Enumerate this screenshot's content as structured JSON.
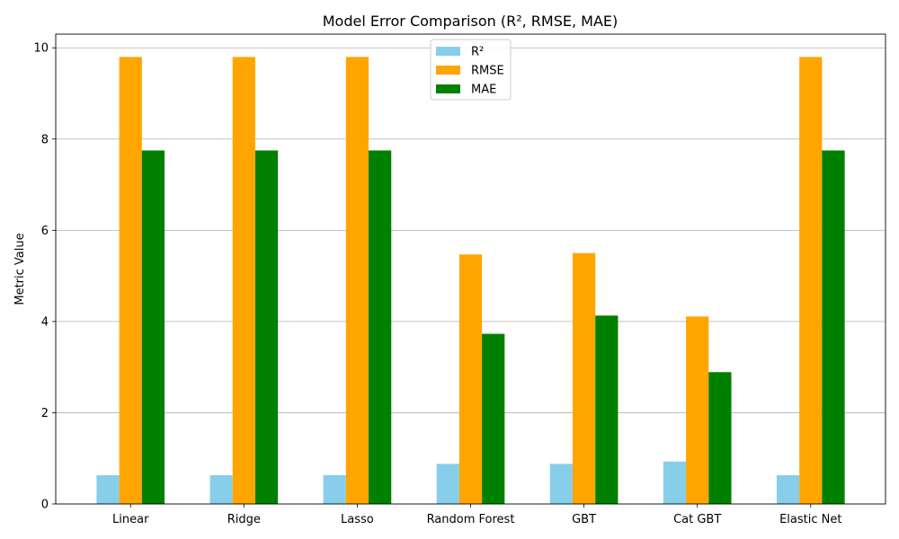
{
  "chart_data": {
    "type": "bar",
    "title": "Model Error Comparison (R², RMSE, MAE)",
    "xlabel": "",
    "ylabel": "Metric Value",
    "categories": [
      "Linear",
      "Ridge",
      "Lasso",
      "Random Forest",
      "GBT",
      "Cat GBT",
      "Elastic Net"
    ],
    "series": [
      {
        "name": "R²",
        "color": "#87CEEB",
        "values": [
          0.63,
          0.63,
          0.63,
          0.88,
          0.88,
          0.93,
          0.63
        ]
      },
      {
        "name": "RMSE",
        "color": "#FFA500",
        "values": [
          9.8,
          9.8,
          9.8,
          5.47,
          5.5,
          4.11,
          9.8
        ]
      },
      {
        "name": "MAE",
        "color": "#008000",
        "values": [
          7.75,
          7.75,
          7.75,
          3.73,
          4.13,
          2.89,
          7.75
        ]
      }
    ],
    "ylim": [
      0,
      10.3
    ],
    "yticks": [
      0,
      2,
      4,
      6,
      8,
      10
    ],
    "grid": "y",
    "legend_position": "top-center"
  }
}
